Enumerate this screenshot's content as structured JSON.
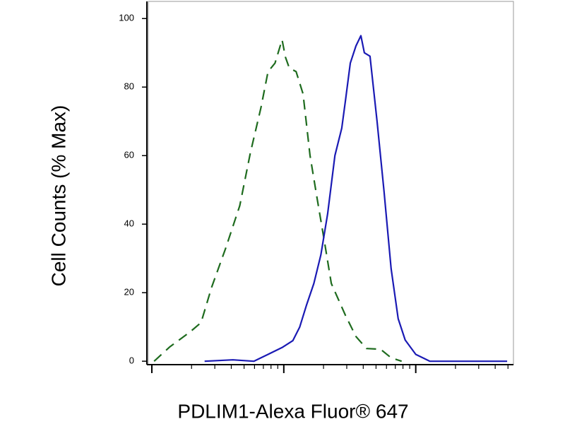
{
  "chart_data": {
    "type": "line",
    "xlabel": "PDLIM1-Alexa Fluor® 647",
    "ylabel": "Cell Counts (% Max)",
    "xscale": "log",
    "xlim": [
      1,
      550
    ],
    "xticks": [
      1,
      10,
      100
    ],
    "xminor_ticks": [
      2,
      3,
      4,
      5,
      6,
      7,
      8,
      9,
      20,
      30,
      40,
      50,
      60,
      70,
      80,
      90,
      200,
      300,
      400,
      500
    ],
    "ylim": [
      -1,
      105
    ],
    "yticks": [
      0,
      20,
      40,
      60,
      80,
      100
    ],
    "series": [
      {
        "color": "#1e6b1e",
        "dash": true,
        "x": [
          1.04,
          1.36,
          1.97,
          2.36,
          2.84,
          3.63,
          4.64,
          5.58,
          6.71,
          7.59,
          8.58,
          9.7,
          10.3,
          11.0,
          12.4,
          14.0,
          15.8,
          17.9,
          20.3,
          22.9,
          29.3,
          35.2,
          42.3,
          54.1,
          65.1,
          78.2
        ],
        "values": [
          0,
          4.1,
          8.7,
          11.3,
          21.6,
          33,
          45.4,
          60.8,
          74,
          84.5,
          87,
          93.8,
          88.7,
          85.6,
          84.5,
          78,
          60,
          47.4,
          35,
          22.7,
          13.4,
          7.2,
          3.7,
          3.5,
          1,
          0
        ]
      },
      {
        "color": "#1a1ab4",
        "dash": false,
        "x": [
          2.51,
          4.11,
          5.93,
          7.59,
          9.7,
          11.7,
          13.2,
          14.9,
          16.9,
          19.1,
          21.5,
          24.4,
          27.5,
          29.3,
          31.9,
          35.2,
          38.4,
          40.8,
          45.0,
          50.9,
          57.5,
          65.1,
          73.6,
          83.2,
          100,
          128,
          493
        ],
        "values": [
          0,
          0.4,
          0,
          2,
          4,
          6,
          10,
          16.5,
          22.7,
          31,
          43,
          60,
          68,
          76,
          87,
          92,
          95,
          90,
          89,
          70,
          49.5,
          27,
          12.4,
          6.2,
          2,
          0,
          0
        ]
      }
    ]
  }
}
